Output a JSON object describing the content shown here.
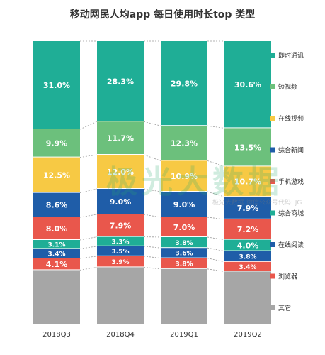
{
  "chart_data": {
    "type": "bar",
    "stacked": true,
    "normalized": true,
    "title": "移动网民人均app 每日使用时长top 类型",
    "categories": [
      "2018Q3",
      "2018Q4",
      "2019Q1",
      "2019Q2"
    ],
    "series": [
      {
        "name": "其它",
        "color": "#a6a6a6",
        "values": [
          null,
          null,
          null,
          null
        ]
      },
      {
        "name": "浏览器",
        "color": "#e9574c",
        "values": [
          4.1,
          3.9,
          3.8,
          3.4
        ]
      },
      {
        "name": "在线阅读",
        "color": "#1f5da8",
        "values": [
          3.4,
          3.5,
          3.6,
          3.8
        ]
      },
      {
        "name": "综合商城",
        "color": "#1fae96",
        "values": [
          3.1,
          3.3,
          3.8,
          4.0
        ]
      },
      {
        "name": "手机游戏",
        "color": "#e9574c",
        "values": [
          8.0,
          7.9,
          7.0,
          7.2
        ]
      },
      {
        "name": "综合新闻",
        "color": "#1f5da8",
        "values": [
          8.6,
          9.0,
          9.0,
          7.9
        ]
      },
      {
        "name": "在线视频",
        "color": "#f7c944",
        "values": [
          12.5,
          12.0,
          10.9,
          10.7
        ]
      },
      {
        "name": "短视频",
        "color": "#6cc07c",
        "values": [
          9.9,
          11.7,
          12.3,
          13.5
        ]
      },
      {
        "name": "即时通讯",
        "color": "#1fae96",
        "values": [
          31.0,
          28.3,
          29.8,
          30.6
        ]
      }
    ],
    "value_format": "{v}%",
    "legend_position": "right",
    "grid": false
  },
  "watermark": {
    "text": "极光大数据",
    "sub": "极光大数据 微信公众号代码: JG"
  }
}
